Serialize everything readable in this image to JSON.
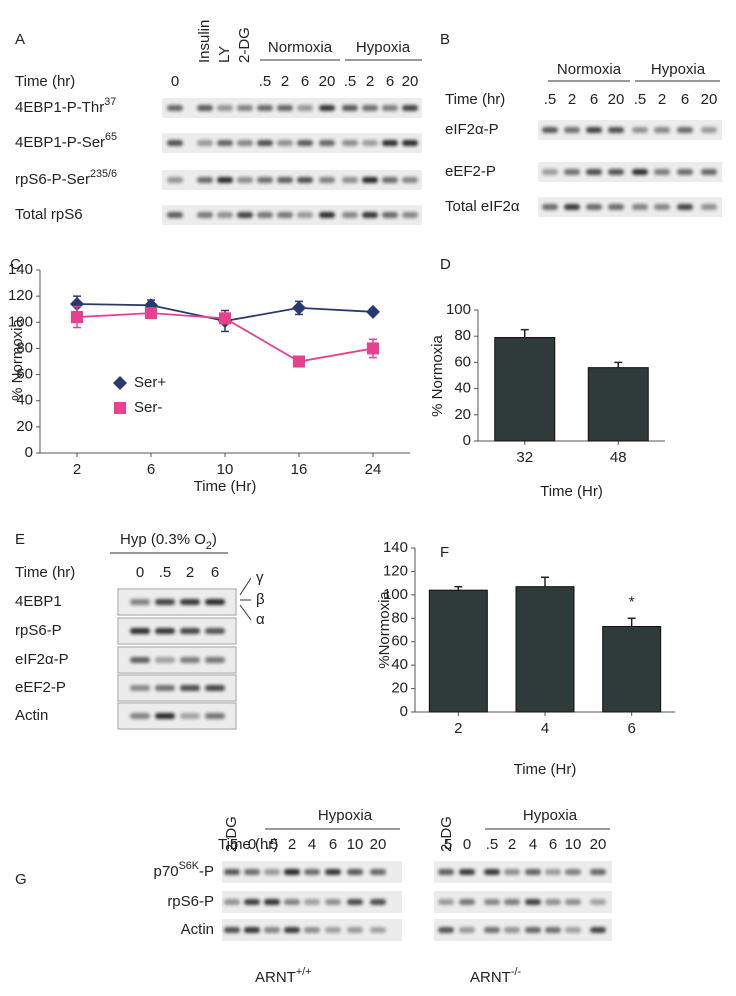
{
  "blot_a": {
    "label": "A",
    "time_label": "Time (hr)",
    "treatments": [
      "0",
      "Insulin",
      "LY",
      "2-DG"
    ],
    "groups": [
      "Normoxia",
      "Hypoxia"
    ],
    "times": [
      ".5",
      "2",
      "6",
      "20",
      ".5",
      "2",
      "6",
      "20"
    ],
    "rows": [
      {
        "text": "4EBP1-P-Thr",
        "sup": "37"
      },
      {
        "text": "4EBP1-P-Ser",
        "sup": "65"
      },
      {
        "text": "rpS6-P-Ser",
        "sup": "235/6"
      },
      {
        "text": "Total rpS6"
      }
    ]
  },
  "blot_b": {
    "label": "B",
    "groups": [
      "Normoxia",
      "Hypoxia"
    ],
    "time_label": "Time (hr)",
    "times": [
      ".5",
      "2",
      "6",
      "20",
      ".5",
      "2",
      "6",
      "20"
    ],
    "rows": [
      {
        "text": "eIF2α-P"
      },
      {
        "text": "eEF2-P"
      },
      {
        "text": "Total eIF2α"
      }
    ]
  },
  "blot_e": {
    "label": "E",
    "condition": {
      "text": "Hyp (0.3% O",
      "sub": "2",
      "after": ")"
    },
    "time_label": "Time (hr)",
    "times": [
      "0",
      ".5",
      "2",
      "6"
    ],
    "rows": [
      {
        "text": "4EBP1"
      },
      {
        "text": "rpS6-P"
      },
      {
        "text": "eIF2α-P"
      },
      {
        "text": "eEF2-P"
      },
      {
        "text": "Actin"
      }
    ],
    "isoforms": [
      "γ",
      "β",
      "α"
    ]
  },
  "blot_g": {
    "label": "G",
    "blots": [
      {
        "treatment": "2-DG",
        "group": "Hypoxia",
        "time_label": "Time (hr)",
        "times": [
          ".5",
          "0",
          ".5",
          "2",
          "4",
          "6",
          "10",
          "20"
        ],
        "rows": [
          {
            "text": "p70",
            "sup": "S6K",
            "after": "-P"
          },
          {
            "text": "rpS6-P"
          },
          {
            "text": "Actin"
          }
        ],
        "genotype": {
          "text": "ARNT",
          "sup": "+/+"
        }
      },
      {
        "treatment": "2-DG",
        "group": "Hypoxia",
        "times": [
          ".5",
          "0",
          ".5",
          "2",
          "4",
          "6",
          "10",
          "20"
        ],
        "genotype": {
          "text": "ARNT",
          "sup": "-/-"
        }
      }
    ]
  },
  "chart_data": [
    {
      "type": "line",
      "label": "C",
      "ylabel": "% Normoxia",
      "xlabel": "Time (Hr)",
      "categories": [
        "2",
        "6",
        "10",
        "16",
        "24"
      ],
      "ylim": [
        0,
        140
      ],
      "yticks": [
        0,
        20,
        40,
        60,
        80,
        100,
        120,
        140
      ],
      "series": [
        {
          "name": "Ser+",
          "color": "#2b3a6e",
          "marker": "diamond",
          "values": [
            114,
            113,
            101,
            111,
            108
          ],
          "errors": [
            6,
            4,
            8,
            5,
            2
          ]
        },
        {
          "name": "Ser-",
          "color": "#e8408e",
          "marker": "square",
          "values": [
            104,
            107,
            103,
            70,
            80
          ],
          "errors": [
            8,
            3,
            4,
            3,
            7
          ]
        }
      ]
    },
    {
      "type": "bar",
      "label": "D",
      "ylabel": "% Normoxia",
      "xlabel": "Time (Hr)",
      "color": "#2f3b3a",
      "categories": [
        "32",
        "48"
      ],
      "values": [
        79,
        56
      ],
      "errors": [
        6,
        4
      ],
      "ylim": [
        0,
        100
      ],
      "yticks": [
        0,
        20,
        40,
        60,
        80,
        100
      ]
    },
    {
      "type": "bar",
      "label": "F",
      "ylabel": "%Normoxia",
      "xlabel": "Time (Hr)",
      "color": "#2f3b3a",
      "categories": [
        "2",
        "4",
        "6"
      ],
      "values": [
        104,
        107,
        73
      ],
      "errors": [
        3,
        8,
        7
      ],
      "ylim": [
        0,
        140
      ],
      "yticks": [
        0,
        20,
        40,
        60,
        80,
        100,
        120,
        140
      ],
      "annotations": [
        {
          "text": "*",
          "x": "6"
        }
      ]
    }
  ]
}
